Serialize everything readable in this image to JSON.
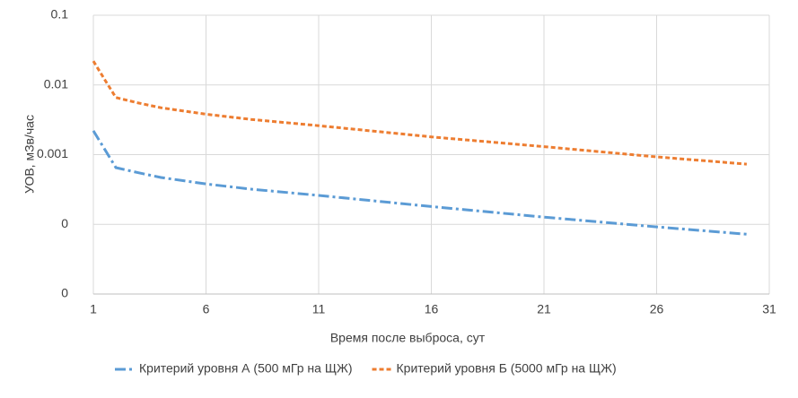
{
  "chart_data": {
    "type": "line",
    "xlabel": "Время после выброса, сут",
    "ylabel": "УОВ, мЗв/час",
    "x": [
      1,
      1.5,
      2,
      3,
      4,
      6,
      8,
      11,
      16,
      21,
      26,
      30
    ],
    "series": [
      {
        "name": "Критерий уровня А (500 мГр на ЩЖ)",
        "color": "#5b9bd5",
        "dash": "dashdot",
        "values": [
          0.0022,
          0.0012,
          0.00065,
          0.00055,
          0.00047,
          0.00038,
          0.00032,
          0.00026,
          0.00018,
          0.000127,
          9.2e-05,
          7.2e-05
        ]
      },
      {
        "name": "Критерий уровня Б (5000 мГр на ЩЖ)",
        "color": "#ed7d31",
        "dash": "dashed",
        "values": [
          0.022,
          0.012,
          0.0066,
          0.0055,
          0.0047,
          0.0038,
          0.0032,
          0.0026,
          0.0018,
          0.0013,
          0.00093,
          0.00073
        ]
      }
    ],
    "xlim": [
      1,
      31
    ],
    "xticks": [
      1,
      6,
      11,
      16,
      21,
      26,
      31
    ],
    "ylim": [
      1e-05,
      0.1
    ],
    "ylog": true,
    "yticks": [
      {
        "value": 1e-05,
        "label": "0"
      },
      {
        "value": 0.0001,
        "label": "0"
      },
      0.001,
      0.01,
      0.1
    ],
    "grid": true,
    "legend": "bottom"
  }
}
